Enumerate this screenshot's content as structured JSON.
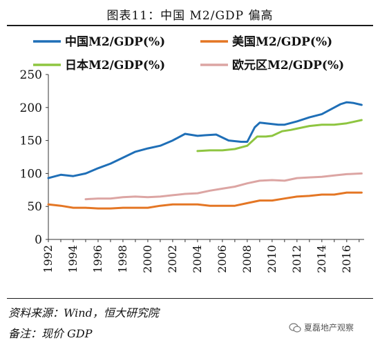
{
  "title": "图表11：中国 M2/GDP 偏高",
  "source_note": "资料来源：Wind，恒大研究院",
  "remark_note": "备注：现价 GDP",
  "watermark": "夏磊地产观察",
  "chart_data": {
    "type": "line",
    "x_ticks": [
      "1992",
      "1994",
      "1996",
      "1998",
      "2000",
      "2002",
      "2004",
      "2006",
      "2008",
      "2010",
      "2012",
      "2014",
      "2016"
    ],
    "ylim": [
      0,
      250
    ],
    "y_ticks": [
      "0",
      "50",
      "100",
      "150",
      "200",
      "250"
    ],
    "xlim": [
      1992,
      2017.4
    ],
    "legend_position": "top",
    "series": [
      {
        "name": "中国M2/GDP(%)",
        "color": "#1f6fb7",
        "points": [
          [
            1992,
            93
          ],
          [
            1993,
            98
          ],
          [
            1994,
            96
          ],
          [
            1995,
            100
          ],
          [
            1996,
            108
          ],
          [
            1997,
            115
          ],
          [
            1998,
            124
          ],
          [
            1999,
            133
          ],
          [
            2000,
            138
          ],
          [
            2001,
            142
          ],
          [
            2002,
            150
          ],
          [
            2003,
            160
          ],
          [
            2004,
            157
          ],
          [
            2004.6,
            158
          ],
          [
            2005.5,
            159
          ],
          [
            2006.5,
            150
          ],
          [
            2007.5,
            148
          ],
          [
            2008,
            148
          ],
          [
            2008.6,
            170
          ],
          [
            2009,
            177
          ],
          [
            2009.5,
            176
          ],
          [
            2010,
            175
          ],
          [
            2010.5,
            174
          ],
          [
            2011,
            174
          ],
          [
            2012,
            179
          ],
          [
            2013,
            185
          ],
          [
            2014,
            190
          ],
          [
            2015,
            200
          ],
          [
            2015.5,
            205
          ],
          [
            2016,
            208
          ],
          [
            2016.5,
            207
          ],
          [
            2017.2,
            204
          ]
        ]
      },
      {
        "name": "美国M2/GDP(%)",
        "color": "#e47624",
        "points": [
          [
            1992,
            53
          ],
          [
            1993,
            51
          ],
          [
            1994,
            48
          ],
          [
            1995,
            48
          ],
          [
            1996,
            47
          ],
          [
            1997,
            47
          ],
          [
            1998,
            48
          ],
          [
            1999,
            48
          ],
          [
            2000,
            48
          ],
          [
            2001,
            51
          ],
          [
            2002,
            53
          ],
          [
            2003,
            53
          ],
          [
            2004,
            53
          ],
          [
            2005,
            51
          ],
          [
            2006,
            51
          ],
          [
            2007,
            51
          ],
          [
            2008,
            55
          ],
          [
            2009,
            59
          ],
          [
            2010,
            59
          ],
          [
            2011,
            62
          ],
          [
            2012,
            65
          ],
          [
            2013,
            66
          ],
          [
            2014,
            68
          ],
          [
            2015,
            68
          ],
          [
            2016,
            71
          ],
          [
            2017.2,
            71
          ]
        ]
      },
      {
        "name": "日本M2/GDP(%)",
        "color": "#8ec540",
        "points": [
          [
            2004,
            134
          ],
          [
            2005,
            135
          ],
          [
            2006,
            135
          ],
          [
            2007,
            137
          ],
          [
            2008,
            142
          ],
          [
            2008.8,
            156
          ],
          [
            2009.5,
            156
          ],
          [
            2010,
            157
          ],
          [
            2010.8,
            164
          ],
          [
            2011.5,
            166
          ],
          [
            2012,
            168
          ],
          [
            2013,
            172
          ],
          [
            2014,
            174
          ],
          [
            2015,
            174
          ],
          [
            2016,
            176
          ],
          [
            2017.2,
            181
          ]
        ]
      },
      {
        "name": "欧元区M2/GDP(%)",
        "color": "#dca5a3",
        "points": [
          [
            1995,
            61
          ],
          [
            1996,
            62
          ],
          [
            1997,
            62
          ],
          [
            1998,
            64
          ],
          [
            1999,
            65
          ],
          [
            2000,
            64
          ],
          [
            2001,
            65
          ],
          [
            2002,
            67
          ],
          [
            2003,
            69
          ],
          [
            2004,
            70
          ],
          [
            2005,
            74
          ],
          [
            2006,
            77
          ],
          [
            2007,
            80
          ],
          [
            2008,
            85
          ],
          [
            2009,
            89
          ],
          [
            2010,
            90
          ],
          [
            2011,
            89
          ],
          [
            2012,
            93
          ],
          [
            2013,
            94
          ],
          [
            2014,
            95
          ],
          [
            2015,
            97
          ],
          [
            2016,
            99
          ],
          [
            2017.2,
            100
          ]
        ]
      }
    ]
  }
}
